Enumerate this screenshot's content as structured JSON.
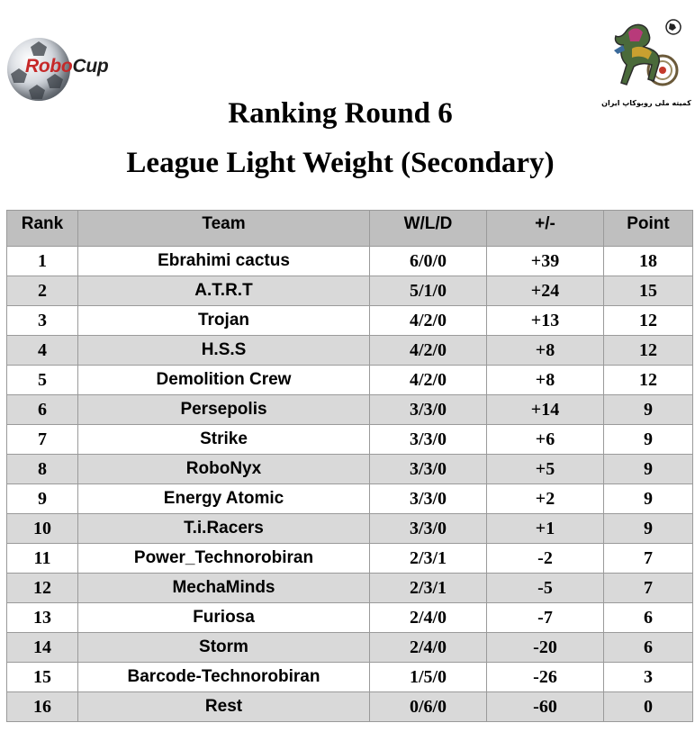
{
  "header": {
    "left_logo": {
      "wordmark_part1": "Robo",
      "wordmark_part2": "Cup",
      "colors": {
        "robo": "#c62828",
        "cup": "#1e1e1e"
      }
    },
    "right_logo": {
      "caption": "کمیته ملی روبوکاپ ایران",
      "icon": "horse-emblem-icon"
    },
    "title": "Ranking Round 6",
    "subtitle": "League Light Weight (Secondary)"
  },
  "table": {
    "columns": [
      "Rank",
      "Team",
      "W/L/D",
      "+/-",
      "Point"
    ],
    "header_bg": "#bfbfbf",
    "stripe_bg": "#d9d9d9",
    "rows": [
      {
        "rank": "1",
        "team": "Ebrahimi cactus",
        "wld": "6/0/0",
        "diff": "+39",
        "point": "18"
      },
      {
        "rank": "2",
        "team": "A.T.R.T",
        "wld": "5/1/0",
        "diff": "+24",
        "point": "15"
      },
      {
        "rank": "3",
        "team": "Trojan",
        "wld": "4/2/0",
        "diff": "+13",
        "point": "12"
      },
      {
        "rank": "4",
        "team": "H.S.S",
        "wld": "4/2/0",
        "diff": "+8",
        "point": "12"
      },
      {
        "rank": "5",
        "team": "Demolition Crew",
        "wld": "4/2/0",
        "diff": "+8",
        "point": "12"
      },
      {
        "rank": "6",
        "team": "Persepolis",
        "wld": "3/3/0",
        "diff": "+14",
        "point": "9"
      },
      {
        "rank": "7",
        "team": "Strike",
        "wld": "3/3/0",
        "diff": "+6",
        "point": "9"
      },
      {
        "rank": "8",
        "team": "RoboNyx",
        "wld": "3/3/0",
        "diff": "+5",
        "point": "9"
      },
      {
        "rank": "9",
        "team": "Energy Atomic",
        "wld": "3/3/0",
        "diff": "+2",
        "point": "9"
      },
      {
        "rank": "10",
        "team": "T.i.Racers",
        "wld": "3/3/0",
        "diff": "+1",
        "point": "9"
      },
      {
        "rank": "11",
        "team": "Power_Technorobiran",
        "wld": "2/3/1",
        "diff": "-2",
        "point": "7"
      },
      {
        "rank": "12",
        "team": "MechaMinds",
        "wld": "2/3/1",
        "diff": "-5",
        "point": "7"
      },
      {
        "rank": "13",
        "team": "Furiosa",
        "wld": "2/4/0",
        "diff": "-7",
        "point": "6"
      },
      {
        "rank": "14",
        "team": "Storm",
        "wld": "2/4/0",
        "diff": "-20",
        "point": "6"
      },
      {
        "rank": "15",
        "team": "Barcode-Technorobiran",
        "wld": "1/5/0",
        "diff": "-26",
        "point": "3"
      },
      {
        "rank": "16",
        "team": "Rest",
        "wld": "0/6/0",
        "diff": "-60",
        "point": "0"
      }
    ]
  }
}
